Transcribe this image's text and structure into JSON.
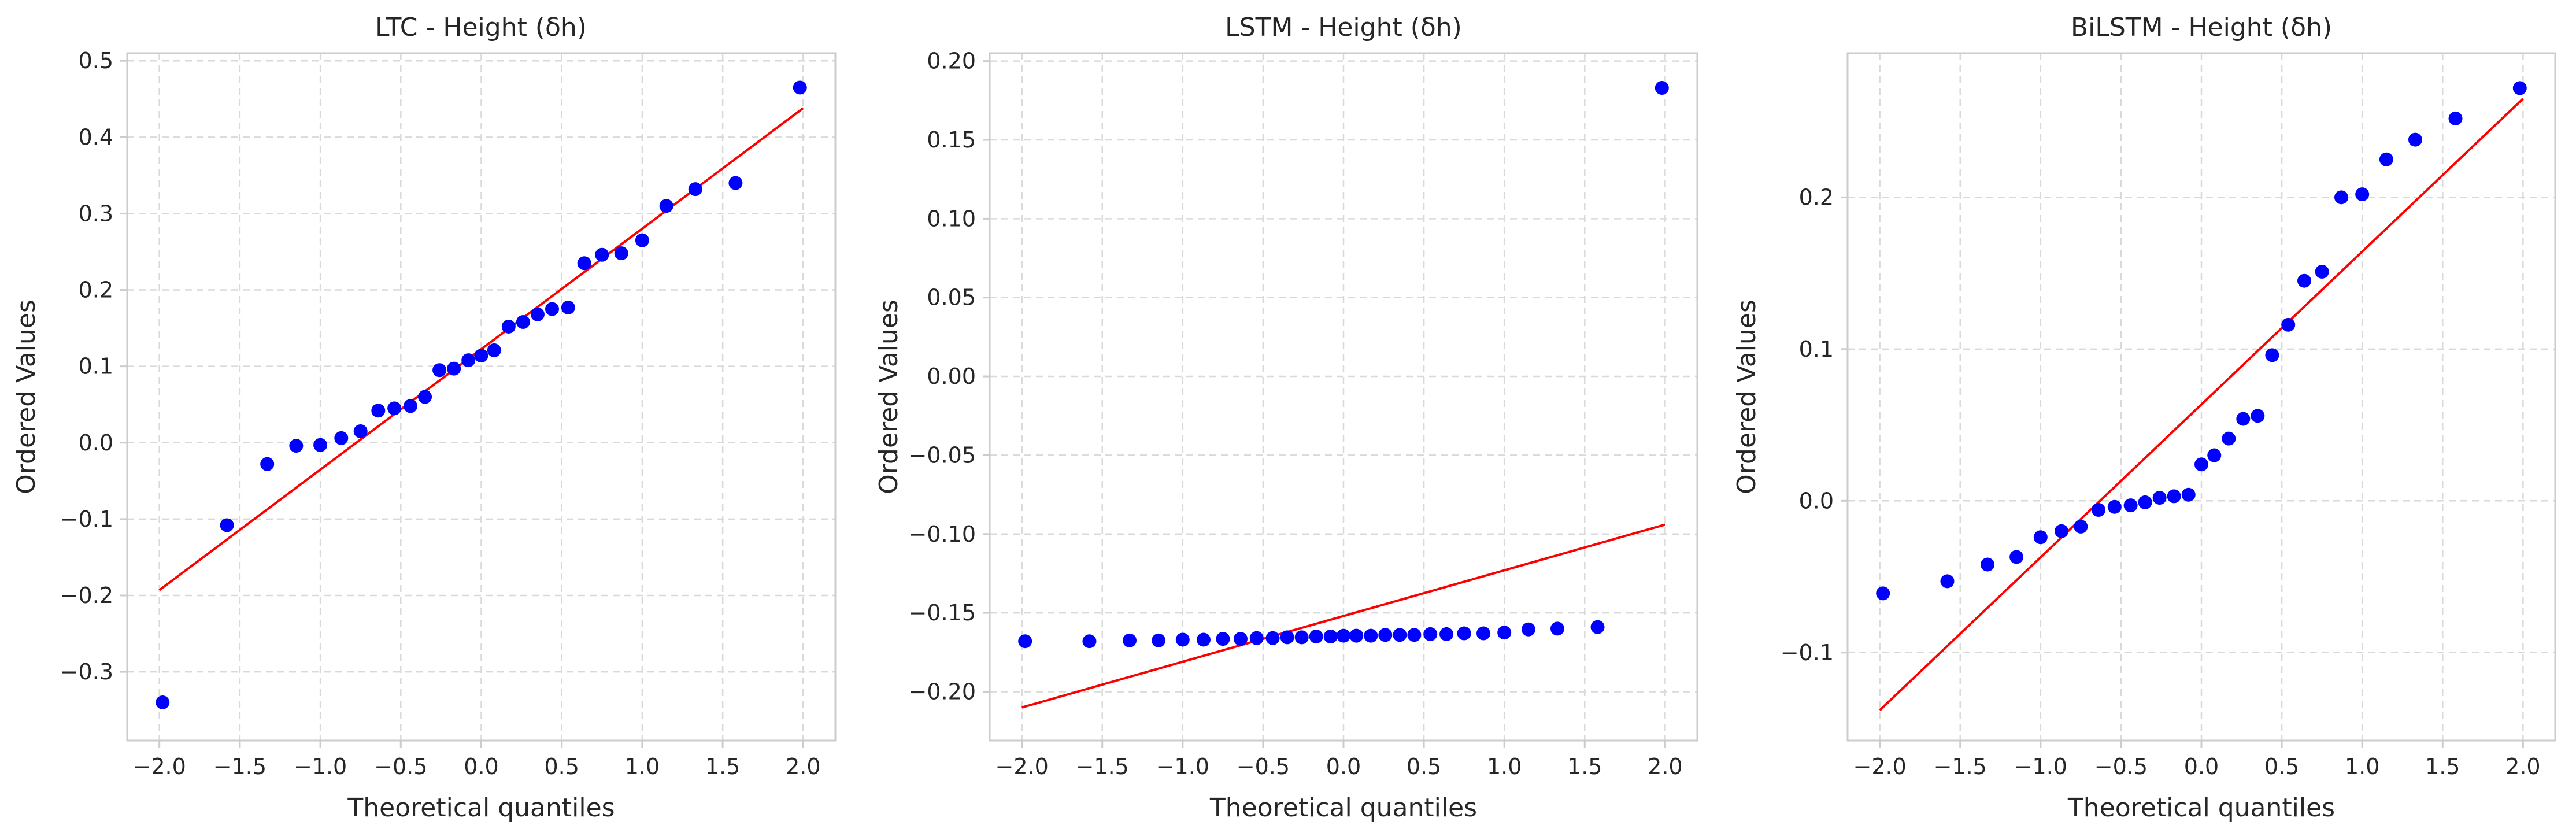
{
  "colors": {
    "points": "#0000ff",
    "fit_line": "#ff0000",
    "grid": "#d9d9d9",
    "frame": "#cccccc",
    "text": "#262626"
  },
  "chart_data": [
    {
      "type": "scatter",
      "title": "LTC - Height (δh)",
      "xlabel": "Theoretical quantiles",
      "ylabel": "Ordered Values",
      "grid": true,
      "xlim": [
        -2.2,
        2.2
      ],
      "ylim": [
        -0.39,
        0.51
      ],
      "xticks": [
        -2.0,
        -1.5,
        -1.0,
        -0.5,
        0.0,
        0.5,
        1.0,
        1.5,
        2.0
      ],
      "xtick_labels": [
        "−2.0",
        "−1.5",
        "−1.0",
        "−0.5",
        "0.0",
        "0.5",
        "1.0",
        "1.5",
        "2.0"
      ],
      "yticks": [
        -0.3,
        -0.2,
        -0.1,
        0.0,
        0.1,
        0.2,
        0.3,
        0.4,
        0.5
      ],
      "ytick_labels": [
        "−0.3",
        "−0.2",
        "−0.1",
        "0.0",
        "0.1",
        "0.2",
        "0.3",
        "0.4",
        "0.5"
      ],
      "series": [
        {
          "points": [
            [
              -1.98,
              -0.34
            ],
            [
              -1.58,
              -0.108
            ],
            [
              -1.33,
              -0.028
            ],
            [
              -1.15,
              -0.004
            ],
            [
              -1.0,
              -0.003
            ],
            [
              -0.87,
              0.006
            ],
            [
              -0.75,
              0.015
            ],
            [
              -0.64,
              0.042
            ],
            [
              -0.54,
              0.045
            ],
            [
              -0.44,
              0.048
            ],
            [
              -0.35,
              0.06
            ],
            [
              -0.26,
              0.095
            ],
            [
              -0.17,
              0.097
            ],
            [
              -0.08,
              0.108
            ],
            [
              0.0,
              0.114
            ],
            [
              0.08,
              0.121
            ],
            [
              0.17,
              0.152
            ],
            [
              0.26,
              0.158
            ],
            [
              0.35,
              0.168
            ],
            [
              0.44,
              0.175
            ],
            [
              0.54,
              0.177
            ],
            [
              0.64,
              0.235
            ],
            [
              0.75,
              0.246
            ],
            [
              0.87,
              0.248
            ],
            [
              1.0,
              0.265
            ],
            [
              1.15,
              0.31
            ],
            [
              1.33,
              0.332
            ],
            [
              1.58,
              0.34
            ],
            [
              1.98,
              0.465
            ]
          ]
        },
        {
          "line": [
            [
              -2.0,
              -0.193
            ],
            [
              2.0,
              0.438
            ]
          ]
        }
      ]
    },
    {
      "type": "scatter",
      "title": "LSTM - Height (δh)",
      "xlabel": "Theoretical quantiles",
      "ylabel": "Ordered Values",
      "grid": true,
      "xlim": [
        -2.2,
        2.2
      ],
      "ylim": [
        -0.231,
        0.205
      ],
      "xticks": [
        -2.0,
        -1.5,
        -1.0,
        -0.5,
        0.0,
        0.5,
        1.0,
        1.5,
        2.0
      ],
      "xtick_labels": [
        "−2.0",
        "−1.5",
        "−1.0",
        "−0.5",
        "0.0",
        "0.5",
        "1.0",
        "1.5",
        "2.0"
      ],
      "yticks": [
        -0.2,
        -0.15,
        -0.1,
        -0.05,
        0.0,
        0.05,
        0.1,
        0.15,
        0.2
      ],
      "ytick_labels": [
        "−0.20",
        "−0.15",
        "−0.10",
        "−0.05",
        "0.00",
        "0.05",
        "0.10",
        "0.15",
        "0.20"
      ],
      "series": [
        {
          "points": [
            [
              -1.98,
              -0.168
            ],
            [
              -1.58,
              -0.168
            ],
            [
              -1.33,
              -0.1675
            ],
            [
              -1.15,
              -0.1675
            ],
            [
              -1.0,
              -0.167
            ],
            [
              -0.87,
              -0.167
            ],
            [
              -0.75,
              -0.1665
            ],
            [
              -0.64,
              -0.1665
            ],
            [
              -0.54,
              -0.166
            ],
            [
              -0.44,
              -0.166
            ],
            [
              -0.35,
              -0.1655
            ],
            [
              -0.26,
              -0.1655
            ],
            [
              -0.17,
              -0.165
            ],
            [
              -0.08,
              -0.165
            ],
            [
              0.0,
              -0.1645
            ],
            [
              0.08,
              -0.1645
            ],
            [
              0.17,
              -0.1645
            ],
            [
              0.26,
              -0.164
            ],
            [
              0.35,
              -0.164
            ],
            [
              0.44,
              -0.164
            ],
            [
              0.54,
              -0.1635
            ],
            [
              0.64,
              -0.1635
            ],
            [
              0.75,
              -0.163
            ],
            [
              0.87,
              -0.163
            ],
            [
              1.0,
              -0.1625
            ],
            [
              1.15,
              -0.1605
            ],
            [
              1.33,
              -0.16
            ],
            [
              1.58,
              -0.159
            ],
            [
              1.98,
              0.183
            ]
          ]
        },
        {
          "line": [
            [
              -2.0,
              -0.21
            ],
            [
              2.0,
              -0.094
            ]
          ]
        }
      ]
    },
    {
      "type": "scatter",
      "title": "BiLSTM - Height (δh)",
      "xlabel": "Theoretical quantiles",
      "ylabel": "Ordered Values",
      "grid": true,
      "xlim": [
        -2.2,
        2.2
      ],
      "ylim": [
        -0.158,
        0.295
      ],
      "xticks": [
        -2.0,
        -1.5,
        -1.0,
        -0.5,
        0.0,
        0.5,
        1.0,
        1.5,
        2.0
      ],
      "xtick_labels": [
        "−2.0",
        "−1.5",
        "−1.0",
        "−0.5",
        "0.0",
        "0.5",
        "1.0",
        "1.5",
        "2.0"
      ],
      "yticks": [
        -0.1,
        0.0,
        0.1,
        0.2
      ],
      "ytick_labels": [
        "−0.1",
        "0.0",
        "0.1",
        "0.2"
      ],
      "series": [
        {
          "points": [
            [
              -1.98,
              -0.061
            ],
            [
              -1.58,
              -0.053
            ],
            [
              -1.33,
              -0.042
            ],
            [
              -1.15,
              -0.037
            ],
            [
              -1.0,
              -0.024
            ],
            [
              -0.87,
              -0.02
            ],
            [
              -0.75,
              -0.017
            ],
            [
              -0.64,
              -0.006
            ],
            [
              -0.54,
              -0.004
            ],
            [
              -0.44,
              -0.003
            ],
            [
              -0.35,
              -0.001
            ],
            [
              -0.26,
              0.002
            ],
            [
              -0.17,
              0.003
            ],
            [
              -0.08,
              0.004
            ],
            [
              0.0,
              0.024
            ],
            [
              0.08,
              0.03
            ],
            [
              0.17,
              0.041
            ],
            [
              0.26,
              0.054
            ],
            [
              0.35,
              0.056
            ],
            [
              0.44,
              0.096
            ],
            [
              0.54,
              0.116
            ],
            [
              0.64,
              0.145
            ],
            [
              0.75,
              0.151
            ],
            [
              0.87,
              0.2
            ],
            [
              1.0,
              0.202
            ],
            [
              1.15,
              0.225
            ],
            [
              1.33,
              0.238
            ],
            [
              1.58,
              0.252
            ],
            [
              1.98,
              0.272
            ]
          ]
        },
        {
          "line": [
            [
              -2.0,
              -0.138
            ],
            [
              2.0,
              0.265
            ]
          ]
        }
      ]
    }
  ]
}
